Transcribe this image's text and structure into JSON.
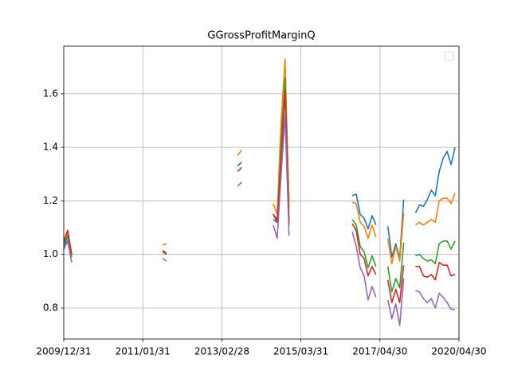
{
  "chart_data": {
    "type": "line",
    "title": "GGrossProfitMarginQ",
    "categories": [
      "2009/12/31",
      null,
      null,
      null,
      null,
      null,
      null,
      null,
      null,
      null,
      null,
      null,
      null,
      null,
      null,
      null,
      null,
      null,
      null,
      null,
      "2011/01/31",
      null,
      null,
      null,
      null,
      null,
      null,
      null,
      null,
      null,
      null,
      null,
      null,
      null,
      null,
      null,
      null,
      null,
      null,
      null,
      "2013/02/28",
      null,
      null,
      null,
      null,
      null,
      null,
      null,
      null,
      null,
      null,
      null,
      null,
      null,
      null,
      null,
      null,
      null,
      null,
      null,
      "2015/03/31",
      null,
      null,
      null,
      null,
      null,
      null,
      null,
      null,
      null,
      null,
      null,
      null,
      null,
      null,
      null,
      null,
      null,
      null,
      null,
      "2017/04/30",
      null,
      null,
      null,
      null,
      null,
      null,
      null,
      null,
      null,
      null,
      null,
      null,
      null,
      null,
      null,
      null,
      null,
      null,
      null,
      "2020/04/30"
    ],
    "series": [
      {
        "color": "#1f77b4",
        "values": [
          1.02,
          1.07,
          1.0,
          null,
          null,
          null,
          null,
          null,
          null,
          null,
          null,
          null,
          null,
          null,
          null,
          null,
          null,
          null,
          null,
          null,
          null,
          null,
          null,
          null,
          null,
          1.01,
          1.005,
          null,
          null,
          null,
          null,
          null,
          null,
          null,
          null,
          null,
          null,
          null,
          null,
          null,
          null,
          null,
          null,
          null,
          1.33,
          1.345,
          null,
          null,
          null,
          null,
          null,
          null,
          null,
          1.15,
          1.13,
          1.45,
          1.63,
          1.2,
          null,
          null,
          null,
          null,
          null,
          null,
          null,
          null,
          null,
          null,
          null,
          null,
          null,
          null,
          null,
          1.22,
          1.225,
          1.15,
          1.135,
          1.095,
          1.145,
          1.11,
          null,
          null,
          1.105,
          0.99,
          1.04,
          0.985,
          1.205,
          null,
          null,
          1.155,
          1.185,
          1.18,
          1.205,
          1.24,
          1.22,
          1.31,
          1.36,
          1.385,
          1.335,
          1.4,
          null
        ]
      },
      {
        "color": "#ff7f0e",
        "values": [
          1.05,
          1.08,
          1.0,
          null,
          null,
          null,
          null,
          null,
          null,
          null,
          null,
          null,
          null,
          null,
          null,
          null,
          null,
          null,
          null,
          null,
          null,
          null,
          null,
          null,
          null,
          1.035,
          1.04,
          null,
          null,
          null,
          null,
          null,
          null,
          null,
          null,
          null,
          null,
          null,
          null,
          null,
          null,
          null,
          null,
          null,
          1.37,
          1.39,
          null,
          null,
          null,
          null,
          null,
          null,
          null,
          1.19,
          1.15,
          1.5,
          1.73,
          1.17,
          null,
          null,
          null,
          null,
          null,
          null,
          null,
          null,
          null,
          null,
          null,
          null,
          null,
          null,
          null,
          1.195,
          1.19,
          1.12,
          1.105,
          1.06,
          1.11,
          1.065,
          null,
          null,
          1.06,
          0.965,
          1.03,
          0.975,
          1.155,
          null,
          null,
          1.11,
          1.12,
          1.11,
          1.12,
          1.13,
          1.12,
          1.2,
          1.21,
          1.21,
          1.19,
          1.23,
          null
        ]
      },
      {
        "color": "#2ca02c",
        "values": [
          1.04,
          1.07,
          0.99,
          null,
          null,
          null,
          null,
          null,
          null,
          null,
          null,
          null,
          null,
          null,
          null,
          null,
          null,
          null,
          null,
          null,
          null,
          null,
          null,
          null,
          null,
          1.015,
          1.005,
          null,
          null,
          null,
          null,
          null,
          null,
          null,
          null,
          null,
          null,
          null,
          null,
          null,
          null,
          null,
          null,
          null,
          null,
          null,
          null,
          null,
          null,
          null,
          null,
          null,
          null,
          1.13,
          1.12,
          1.4,
          1.66,
          1.12,
          null,
          null,
          null,
          null,
          null,
          null,
          null,
          null,
          null,
          null,
          null,
          null,
          null,
          null,
          null,
          1.13,
          1.11,
          1.03,
          1.01,
          0.95,
          0.995,
          0.955,
          null,
          null,
          0.955,
          0.86,
          0.91,
          0.875,
          1.045,
          null,
          null,
          0.995,
          1.0,
          0.985,
          0.975,
          0.98,
          0.965,
          1.04,
          1.05,
          1.05,
          1.02,
          1.05,
          null
        ]
      },
      {
        "color": "#d62728",
        "values": [
          1.05,
          1.09,
          1.0,
          null,
          null,
          null,
          null,
          null,
          null,
          null,
          null,
          null,
          null,
          null,
          null,
          null,
          null,
          null,
          null,
          null,
          null,
          null,
          null,
          null,
          null,
          1.01,
          1.0,
          null,
          null,
          null,
          null,
          null,
          null,
          null,
          null,
          null,
          null,
          null,
          null,
          null,
          null,
          null,
          null,
          null,
          1.31,
          1.325,
          null,
          null,
          null,
          null,
          null,
          null,
          null,
          1.15,
          1.12,
          1.35,
          1.61,
          1.11,
          null,
          null,
          null,
          null,
          null,
          null,
          null,
          null,
          null,
          null,
          null,
          null,
          null,
          null,
          null,
          1.115,
          1.09,
          1.0,
          0.985,
          0.92,
          0.955,
          0.925,
          null,
          null,
          0.905,
          0.82,
          0.87,
          0.82,
          0.96,
          null,
          null,
          0.955,
          0.955,
          0.92,
          0.915,
          0.925,
          0.905,
          0.97,
          0.96,
          0.96,
          0.92,
          0.925,
          null
        ]
      },
      {
        "color": "#9467bd",
        "values": [
          1.02,
          1.05,
          0.97,
          null,
          null,
          null,
          null,
          null,
          null,
          null,
          null,
          null,
          null,
          null,
          null,
          null,
          null,
          null,
          null,
          null,
          null,
          null,
          null,
          null,
          null,
          0.985,
          0.975,
          null,
          null,
          null,
          null,
          null,
          null,
          null,
          null,
          null,
          null,
          null,
          null,
          null,
          null,
          null,
          null,
          null,
          1.255,
          1.27,
          null,
          null,
          null,
          null,
          null,
          null,
          null,
          1.11,
          1.06,
          1.3,
          1.52,
          1.07,
          null,
          null,
          null,
          null,
          null,
          null,
          null,
          null,
          null,
          null,
          null,
          null,
          null,
          null,
          null,
          1.085,
          1.03,
          0.95,
          0.92,
          0.83,
          0.88,
          0.84,
          null,
          null,
          0.83,
          0.76,
          0.815,
          0.735,
          0.91,
          null,
          null,
          0.865,
          0.86,
          0.835,
          0.82,
          0.835,
          0.8,
          0.855,
          0.84,
          0.82,
          0.795,
          0.795,
          null
        ]
      }
    ],
    "ylim": [
      0.684,
      1.778
    ],
    "yticks": [
      0.8,
      {
        "value": 1,
        "label": "1.0"
      },
      1.2,
      1.4,
      1.6
    ],
    "grid": true,
    "legend": "upper right"
  }
}
